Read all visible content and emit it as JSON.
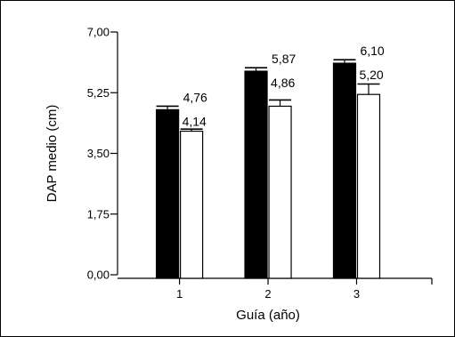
{
  "chart_data": {
    "type": "bar",
    "title": "",
    "xlabel": "Guía (año)",
    "ylabel": "DAP medio (cm)",
    "ylim": [
      0,
      7
    ],
    "yticks": [
      0,
      1.75,
      3.5,
      5.25,
      7
    ],
    "ytick_labels": [
      "0,00",
      "1,75",
      "3,50",
      "5,25",
      "7,00"
    ],
    "categories": [
      "1",
      "2",
      "3"
    ],
    "xlim": [
      0.3,
      3.85
    ],
    "series": [
      {
        "color": "#000000",
        "values": [
          4.76,
          5.87,
          6.1
        ],
        "error": [
          0.1,
          0.1,
          0.1
        ],
        "labels": [
          "4,76",
          "5,87",
          "6,10"
        ]
      },
      {
        "color": "#ffffff",
        "values": [
          4.14,
          4.86,
          5.2
        ],
        "error": [
          0.06,
          0.18,
          0.3
        ],
        "labels": [
          "4,14",
          "4,86",
          "5,20"
        ]
      }
    ],
    "grid": false,
    "legend": "none"
  }
}
